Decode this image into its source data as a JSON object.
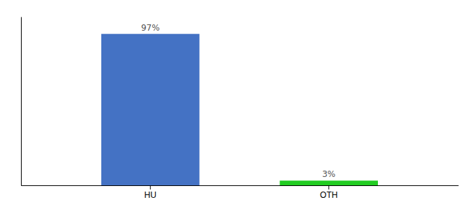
{
  "chart_data": {
    "type": "bar",
    "categories": [
      "HU",
      "OTH"
    ],
    "values": [
      97,
      3
    ],
    "value_labels": [
      "97%",
      "3%"
    ],
    "colors": [
      "#4472c4",
      "#22cc22"
    ],
    "ylim": [
      0,
      108
    ],
    "data_labels": true,
    "tick_labels": "x"
  }
}
